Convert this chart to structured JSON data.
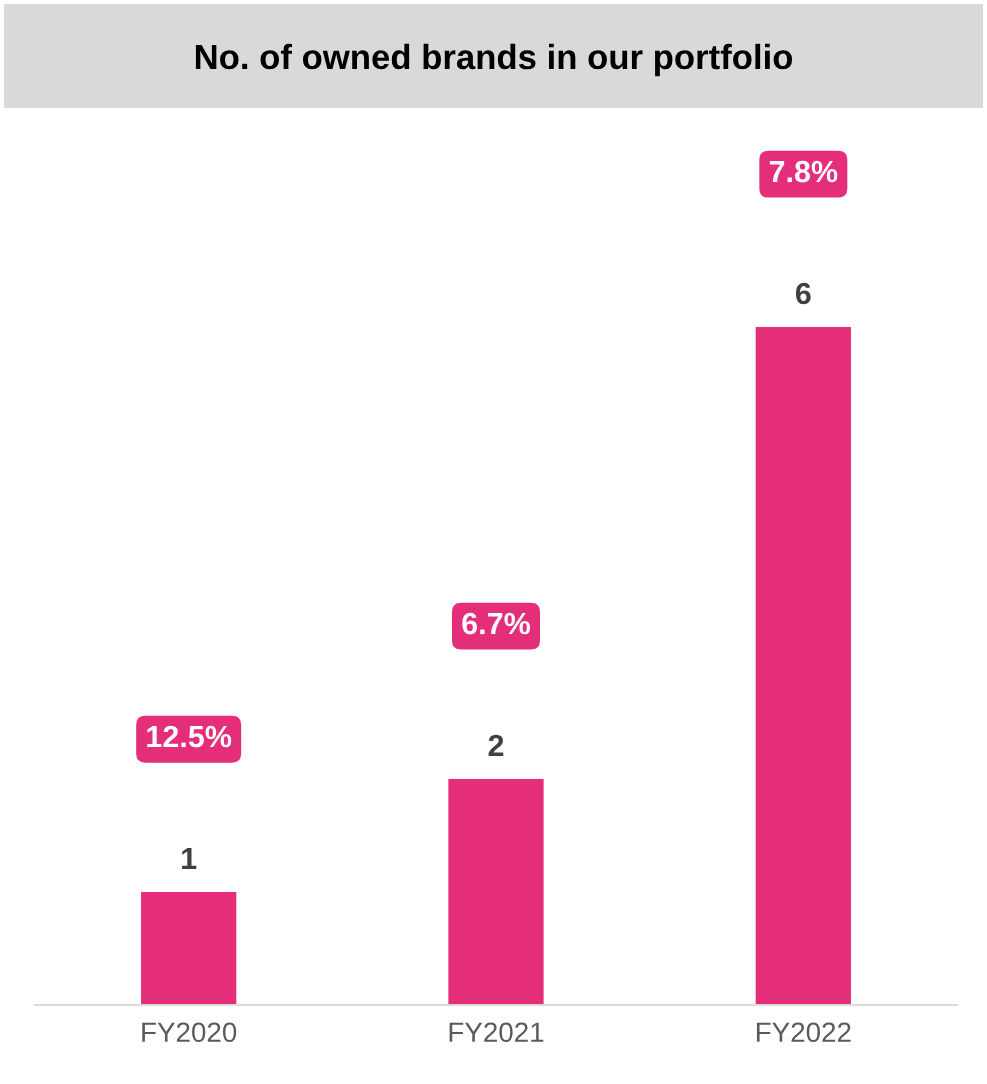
{
  "chart_data": {
    "type": "bar",
    "title": "No. of owned brands in our portfolio",
    "categories": [
      "FY2020",
      "FY2021",
      "FY2022"
    ],
    "values": [
      1,
      2,
      6
    ],
    "color": "#e52e7a",
    "data_labels": true,
    "grid": false,
    "legend": false,
    "annotations": [
      "12.5%",
      "6.7%",
      "7.8%"
    ]
  }
}
